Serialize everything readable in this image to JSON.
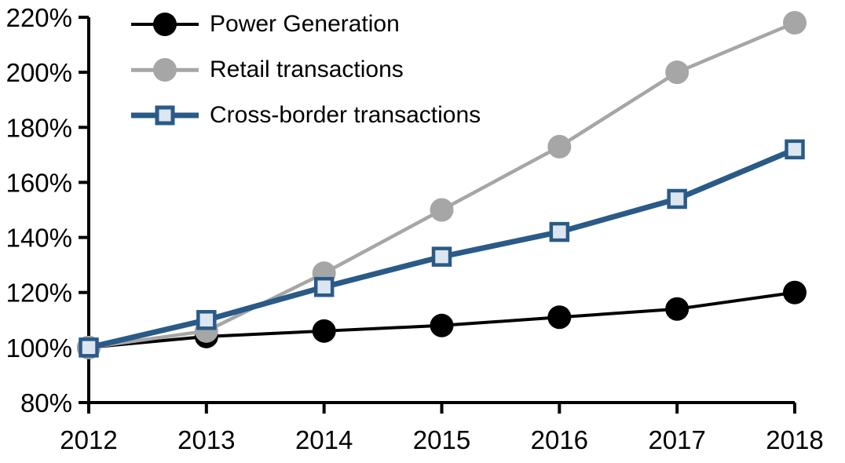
{
  "chart_data": {
    "type": "line",
    "title": "",
    "xlabel": "",
    "ylabel": "",
    "x_categories": [
      "2012",
      "2013",
      "2014",
      "2015",
      "2016",
      "2017",
      "2018"
    ],
    "y_axis": {
      "min": 80,
      "max": 220,
      "step": 20,
      "tick_labels": [
        "80%",
        "100%",
        "120%",
        "140%",
        "160%",
        "180%",
        "200%",
        "220%"
      ],
      "unit": "percent_indexed_to_2012"
    },
    "ylim": [
      80,
      220
    ],
    "grid": false,
    "legend_position": "top-left",
    "series": [
      {
        "name": "Power Generation",
        "values": [
          100,
          104,
          106,
          108,
          111,
          114,
          120
        ],
        "color": "#000000",
        "marker": "circle",
        "marker_fill": "#000000",
        "line_width": 4
      },
      {
        "name": "Retail transactions",
        "values": [
          100,
          106,
          127,
          150,
          173,
          200,
          218
        ],
        "color": "#A6A6A6",
        "marker": "circle",
        "marker_fill": "#A6A6A6",
        "line_width": 4.5
      },
      {
        "name": "Cross-border transactions",
        "values": [
          100,
          110,
          122,
          133,
          142,
          154,
          172
        ],
        "color": "#2A5A87",
        "marker": "square",
        "marker_fill": "#DCE6F1",
        "line_width": 7
      }
    ]
  },
  "colors": {
    "background": "#FFFFFF",
    "axis": "#000000",
    "black_series": "#000000",
    "gray_series": "#A6A6A6",
    "blue_series": "#2A5A87",
    "blue_marker_fill": "#DCE6F1"
  }
}
